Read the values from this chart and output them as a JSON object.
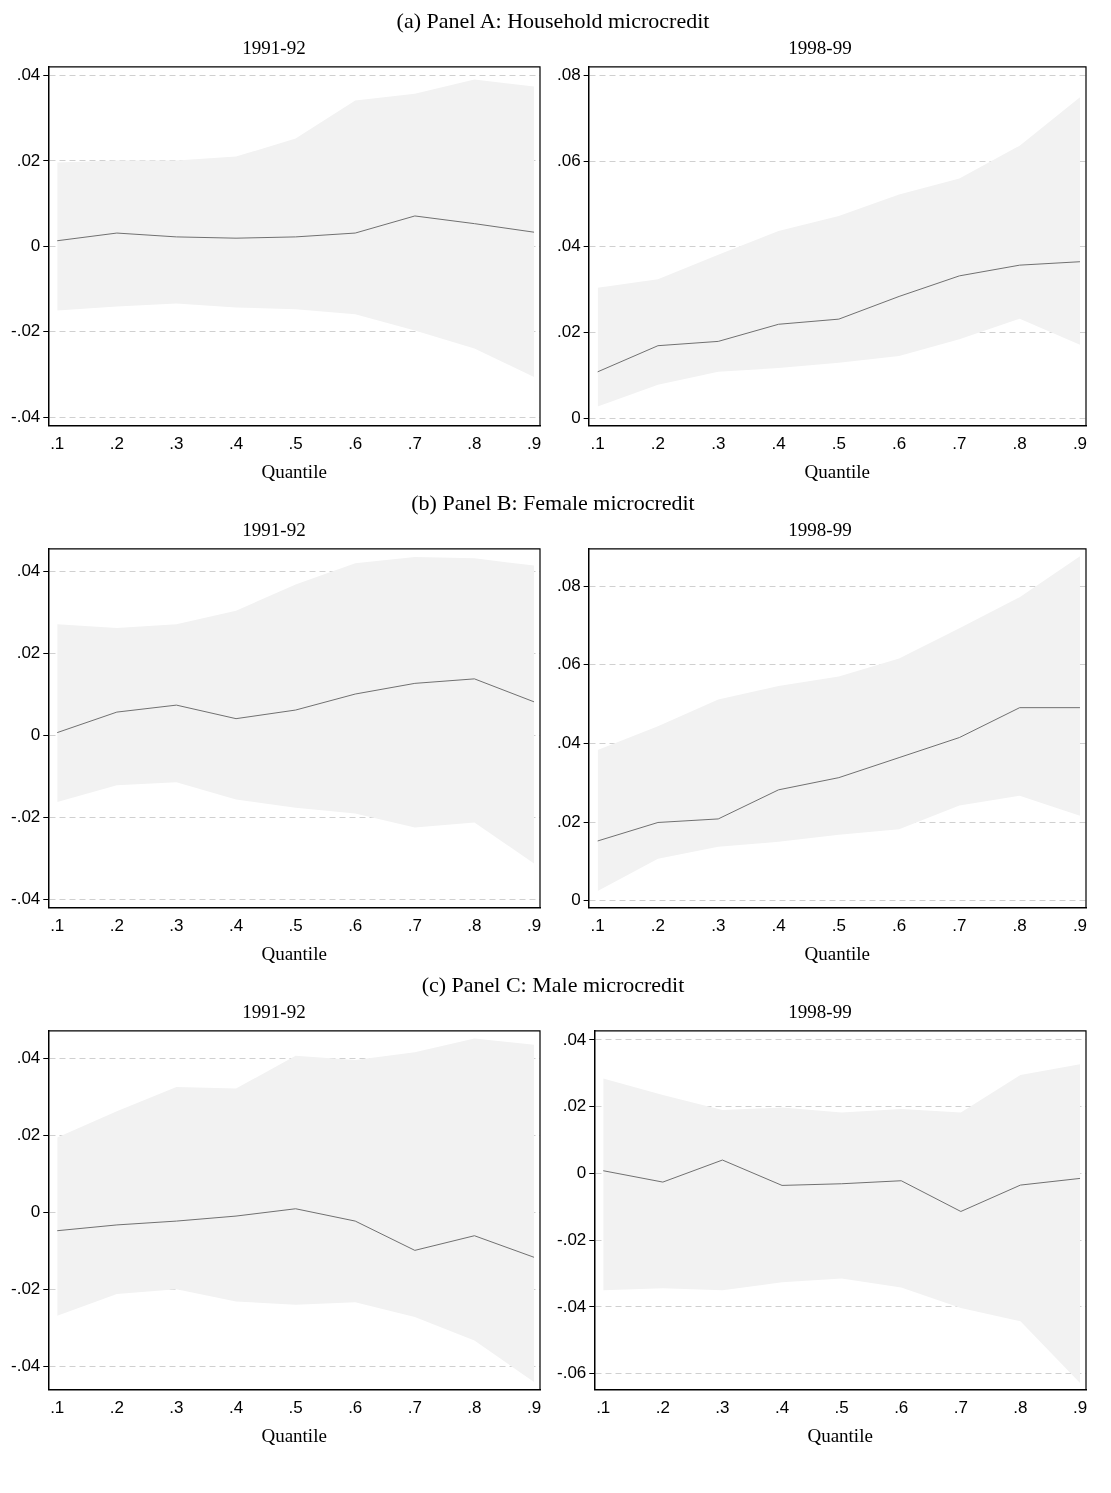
{
  "chart_data": [
    {
      "type": "line",
      "title": "1991-92",
      "xlabel": "Quantile",
      "annotations": [
        "(a) Panel A: Household microcredit"
      ],
      "grid": "y",
      "legend": false,
      "xlim": [
        0.085,
        0.91
      ],
      "ylim": [
        -0.042,
        0.042
      ],
      "xticks": [
        {
          "value": 0.1,
          "label": ".1"
        },
        {
          "value": 0.2,
          "label": ".2"
        },
        {
          "value": 0.3,
          "label": ".3"
        },
        {
          "value": 0.4,
          "label": ".4"
        },
        {
          "value": 0.5,
          "label": ".5"
        },
        {
          "value": 0.6,
          "label": ".6"
        },
        {
          "value": 0.7,
          "label": ".7"
        },
        {
          "value": 0.8,
          "label": ".8"
        },
        {
          "value": 0.9,
          "label": ".9"
        }
      ],
      "yticks": [
        {
          "value": -0.04,
          "label": "-.04"
        },
        {
          "value": -0.02,
          "label": "-.02"
        },
        {
          "value": 0,
          "label": "0"
        },
        {
          "value": 0.02,
          "label": ".02"
        },
        {
          "value": 0.04,
          "label": ".04"
        }
      ],
      "x": [
        0.1,
        0.2,
        0.3,
        0.4,
        0.5,
        0.6,
        0.7,
        0.8,
        0.9
      ],
      "series": [
        {
          "color": "#707070",
          "values": [
            0.0013,
            0.0031,
            0.0022,
            0.0019,
            0.0022,
            0.0031,
            0.0071,
            0.0053,
            0.0033
          ],
          "upper": [
            0.0196,
            0.0201,
            0.0201,
            0.021,
            0.0252,
            0.0341,
            0.0357,
            0.039,
            0.0374
          ],
          "lower": [
            -0.015,
            -0.0141,
            -0.0134,
            -0.0143,
            -0.0147,
            -0.0159,
            -0.0197,
            -0.0239,
            -0.0306
          ]
        }
      ]
    },
    {
      "type": "line",
      "title": "1998-99",
      "xlabel": "Quantile",
      "grid": "y",
      "legend": false,
      "xlim": [
        0.085,
        0.91
      ],
      "ylim": [
        -0.0018,
        0.082
      ],
      "xticks": [
        {
          "value": 0.1,
          "label": ".1"
        },
        {
          "value": 0.2,
          "label": ".2"
        },
        {
          "value": 0.3,
          "label": ".3"
        },
        {
          "value": 0.4,
          "label": ".4"
        },
        {
          "value": 0.5,
          "label": ".5"
        },
        {
          "value": 0.6,
          "label": ".6"
        },
        {
          "value": 0.7,
          "label": ".7"
        },
        {
          "value": 0.8,
          "label": ".8"
        },
        {
          "value": 0.9,
          "label": ".9"
        }
      ],
      "yticks": [
        {
          "value": 0,
          "label": "0"
        },
        {
          "value": 0.02,
          "label": ".02"
        },
        {
          "value": 0.04,
          "label": ".04"
        },
        {
          "value": 0.06,
          "label": ".06"
        },
        {
          "value": 0.08,
          "label": ".08"
        }
      ],
      "x": [
        0.1,
        0.2,
        0.3,
        0.4,
        0.5,
        0.6,
        0.7,
        0.8,
        0.9
      ],
      "series": [
        {
          "color": "#707070",
          "values": [
            0.0108,
            0.0169,
            0.0179,
            0.0219,
            0.0231,
            0.0284,
            0.0332,
            0.0357,
            0.0365
          ],
          "upper": [
            0.0304,
            0.0324,
            0.0381,
            0.0437,
            0.0472,
            0.0522,
            0.0559,
            0.0636,
            0.0749
          ],
          "lower": [
            0.0027,
            0.0078,
            0.0108,
            0.0117,
            0.0129,
            0.0145,
            0.0184,
            0.0232,
            0.0171
          ]
        }
      ]
    },
    {
      "type": "line",
      "title": "1991-92",
      "xlabel": "Quantile",
      "annotations": [
        "(b) Panel B: Female microcredit"
      ],
      "grid": "y",
      "legend": false,
      "xlim": [
        0.085,
        0.91
      ],
      "ylim": [
        -0.042,
        0.0455
      ],
      "xticks": [
        {
          "value": 0.1,
          "label": ".1"
        },
        {
          "value": 0.2,
          "label": ".2"
        },
        {
          "value": 0.3,
          "label": ".3"
        },
        {
          "value": 0.4,
          "label": ".4"
        },
        {
          "value": 0.5,
          "label": ".5"
        },
        {
          "value": 0.6,
          "label": ".6"
        },
        {
          "value": 0.7,
          "label": ".7"
        },
        {
          "value": 0.8,
          "label": ".8"
        },
        {
          "value": 0.9,
          "label": ".9"
        }
      ],
      "yticks": [
        {
          "value": -0.04,
          "label": "-.04"
        },
        {
          "value": -0.02,
          "label": "-.02"
        },
        {
          "value": 0,
          "label": "0"
        },
        {
          "value": 0.02,
          "label": ".02"
        },
        {
          "value": 0.04,
          "label": ".04"
        }
      ],
      "x": [
        0.1,
        0.2,
        0.3,
        0.4,
        0.5,
        0.6,
        0.7,
        0.8,
        0.9
      ],
      "series": [
        {
          "color": "#707070",
          "values": [
            0.0007,
            0.0057,
            0.0074,
            0.0041,
            0.0062,
            0.0101,
            0.0127,
            0.0138,
            0.0082
          ],
          "upper": [
            0.0271,
            0.0262,
            0.0271,
            0.0304,
            0.0368,
            0.042,
            0.0435,
            0.0432,
            0.0414
          ],
          "lower": [
            -0.0162,
            -0.0121,
            -0.0114,
            -0.0156,
            -0.0176,
            -0.019,
            -0.0224,
            -0.0212,
            -0.0312
          ]
        }
      ]
    },
    {
      "type": "line",
      "title": "1998-99",
      "xlabel": "Quantile",
      "grid": "y",
      "legend": false,
      "xlim": [
        0.085,
        0.91
      ],
      "ylim": [
        -0.0018,
        0.0895
      ],
      "xticks": [
        {
          "value": 0.1,
          "label": ".1"
        },
        {
          "value": 0.2,
          "label": ".2"
        },
        {
          "value": 0.3,
          "label": ".3"
        },
        {
          "value": 0.4,
          "label": ".4"
        },
        {
          "value": 0.5,
          "label": ".5"
        },
        {
          "value": 0.6,
          "label": ".6"
        },
        {
          "value": 0.7,
          "label": ".7"
        },
        {
          "value": 0.8,
          "label": ".8"
        },
        {
          "value": 0.9,
          "label": ".9"
        }
      ],
      "yticks": [
        {
          "value": 0,
          "label": "0"
        },
        {
          "value": 0.02,
          "label": ".02"
        },
        {
          "value": 0.04,
          "label": ".04"
        },
        {
          "value": 0.06,
          "label": ".06"
        },
        {
          "value": 0.08,
          "label": ".08"
        }
      ],
      "x": [
        0.1,
        0.2,
        0.3,
        0.4,
        0.5,
        0.6,
        0.7,
        0.8,
        0.9
      ],
      "series": [
        {
          "color": "#707070",
          "values": [
            0.0152,
            0.0199,
            0.0208,
            0.0282,
            0.0313,
            0.0364,
            0.0415,
            0.0491,
            0.0491
          ],
          "upper": [
            0.0383,
            0.0444,
            0.0512,
            0.0546,
            0.057,
            0.0616,
            0.0693,
            0.0772,
            0.0876
          ],
          "lower": [
            0.0025,
            0.0107,
            0.0137,
            0.015,
            0.0168,
            0.0182,
            0.0242,
            0.0267,
            0.0216
          ]
        }
      ]
    },
    {
      "type": "line",
      "title": "1991-92",
      "xlabel": "Quantile",
      "annotations": [
        "(c) Panel C: Male microcredit"
      ],
      "grid": "y",
      "legend": false,
      "xlim": [
        0.085,
        0.91
      ],
      "ylim": [
        -0.046,
        0.0472
      ],
      "xticks": [
        {
          "value": 0.1,
          "label": ".1"
        },
        {
          "value": 0.2,
          "label": ".2"
        },
        {
          "value": 0.3,
          "label": ".3"
        },
        {
          "value": 0.4,
          "label": ".4"
        },
        {
          "value": 0.5,
          "label": ".5"
        },
        {
          "value": 0.6,
          "label": ".6"
        },
        {
          "value": 0.7,
          "label": ".7"
        },
        {
          "value": 0.8,
          "label": ".8"
        },
        {
          "value": 0.9,
          "label": ".9"
        }
      ],
      "yticks": [
        {
          "value": -0.04,
          "label": "-.04"
        },
        {
          "value": -0.02,
          "label": "-.02"
        },
        {
          "value": 0,
          "label": "0"
        },
        {
          "value": 0.02,
          "label": ".02"
        },
        {
          "value": 0.04,
          "label": ".04"
        }
      ],
      "x": [
        0.1,
        0.2,
        0.3,
        0.4,
        0.5,
        0.6,
        0.7,
        0.8,
        0.9
      ],
      "series": [
        {
          "color": "#707070",
          "values": [
            -0.0047,
            -0.0032,
            -0.0022,
            -0.0009,
            0.001,
            -0.0022,
            -0.0098,
            -0.006,
            -0.0116
          ],
          "upper": [
            0.0195,
            0.0263,
            0.0326,
            0.0322,
            0.0407,
            0.0396,
            0.0416,
            0.0452,
            0.0436
          ],
          "lower": [
            -0.0268,
            -0.0211,
            -0.0199,
            -0.0231,
            -0.0239,
            -0.0233,
            -0.0271,
            -0.0332,
            -0.044
          ]
        }
      ]
    },
    {
      "type": "line",
      "title": "1998-99",
      "xlabel": "Quantile",
      "grid": "y",
      "legend": false,
      "xlim": [
        0.085,
        0.91
      ],
      "ylim": [
        -0.0648,
        0.0427
      ],
      "xticks": [
        {
          "value": 0.1,
          "label": ".1"
        },
        {
          "value": 0.2,
          "label": ".2"
        },
        {
          "value": 0.3,
          "label": ".3"
        },
        {
          "value": 0.4,
          "label": ".4"
        },
        {
          "value": 0.5,
          "label": ".5"
        },
        {
          "value": 0.6,
          "label": ".6"
        },
        {
          "value": 0.7,
          "label": ".7"
        },
        {
          "value": 0.8,
          "label": ".8"
        },
        {
          "value": 0.9,
          "label": ".9"
        }
      ],
      "yticks": [
        {
          "value": -0.06,
          "label": "-.06"
        },
        {
          "value": -0.04,
          "label": "-.04"
        },
        {
          "value": -0.02,
          "label": "-.02"
        },
        {
          "value": 0,
          "label": "0"
        },
        {
          "value": 0.02,
          "label": ".02"
        },
        {
          "value": 0.04,
          "label": ".04"
        }
      ],
      "x": [
        0.1,
        0.2,
        0.3,
        0.4,
        0.5,
        0.6,
        0.7,
        0.8,
        0.9
      ],
      "series": [
        {
          "color": "#707070",
          "values": [
            0.0008,
            -0.0026,
            0.004,
            -0.0036,
            -0.0031,
            -0.0022,
            -0.0114,
            -0.0035,
            -0.0015
          ],
          "upper": [
            0.0284,
            0.0235,
            0.019,
            0.0197,
            0.0182,
            0.0193,
            0.0182,
            0.0295,
            0.0327
          ],
          "lower": [
            -0.035,
            -0.0344,
            -0.035,
            -0.0326,
            -0.0315,
            -0.0342,
            -0.0403,
            -0.0443,
            -0.0628
          ]
        }
      ]
    }
  ]
}
